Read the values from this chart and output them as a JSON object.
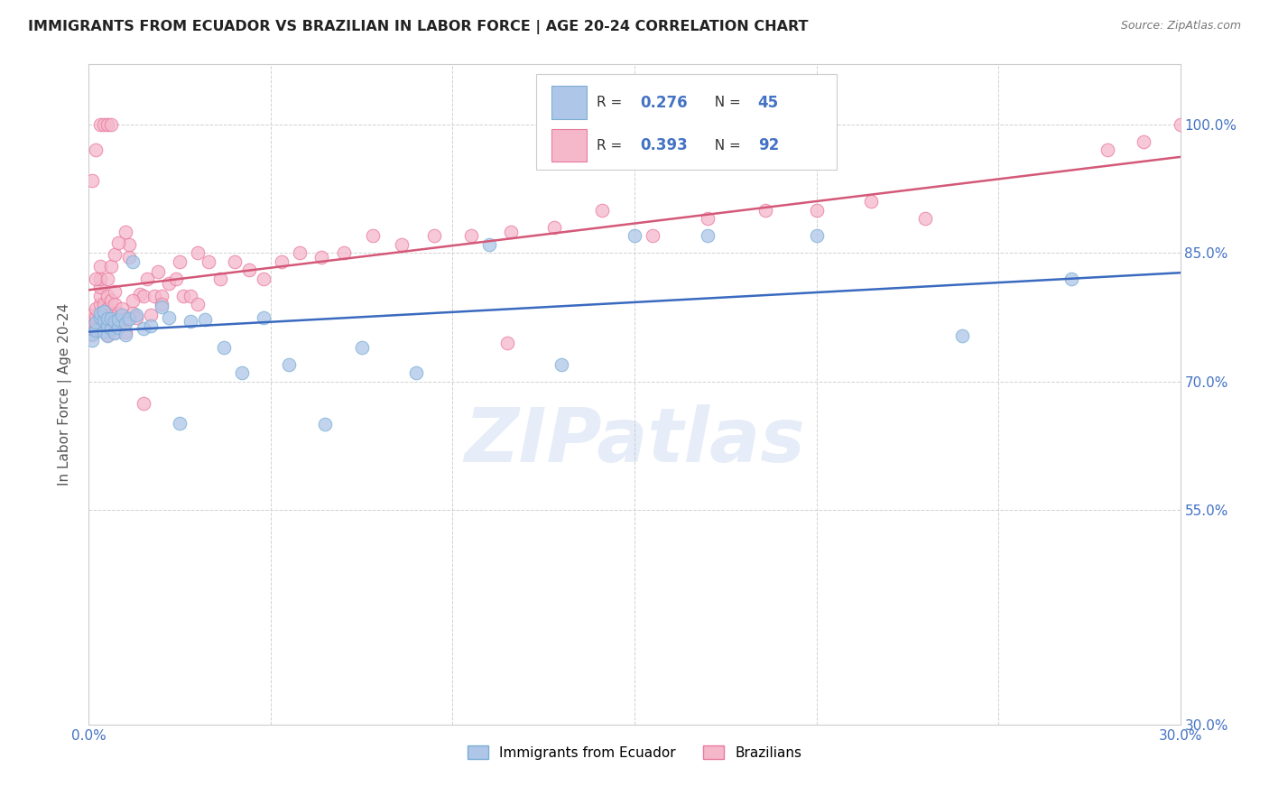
{
  "title": "IMMIGRANTS FROM ECUADOR VS BRAZILIAN IN LABOR FORCE | AGE 20-24 CORRELATION CHART",
  "source": "Source: ZipAtlas.com",
  "ylabel": "In Labor Force | Age 20-24",
  "x_min": 0.0,
  "x_max": 0.3,
  "y_min": 0.3,
  "y_max": 1.07,
  "x_ticks": [
    0.0,
    0.05,
    0.1,
    0.15,
    0.2,
    0.25,
    0.3
  ],
  "x_tick_labels": [
    "0.0%",
    "",
    "",
    "",
    "",
    "",
    "30.0%"
  ],
  "y_ticks": [
    0.3,
    0.55,
    0.7,
    0.85,
    1.0
  ],
  "y_tick_labels": [
    "30.0%",
    "55.0%",
    "70.0%",
    "85.0%",
    "100.0%"
  ],
  "watermark": "ZIPatlas",
  "ecuador_color": "#aec6e8",
  "brazil_color": "#f5b8cb",
  "ecuador_edge_color": "#7aafd4",
  "brazil_edge_color": "#e87a9f",
  "trend_ecuador_color": "#3a6abf",
  "trend_brazil_color": "#d45878",
  "R_ecuador": 0.276,
  "N_ecuador": 45,
  "R_brazil": 0.393,
  "N_brazil": 92,
  "legend_labels": [
    "Immigrants from Ecuador",
    "Brazilians"
  ],
  "ecuador_x": [
    0.001,
    0.001,
    0.002,
    0.002,
    0.003,
    0.003,
    0.004,
    0.004,
    0.004,
    0.005,
    0.005,
    0.005,
    0.006,
    0.006,
    0.007,
    0.007,
    0.008,
    0.008,
    0.009,
    0.01,
    0.01,
    0.011,
    0.012,
    0.013,
    0.015,
    0.017,
    0.02,
    0.022,
    0.025,
    0.028,
    0.032,
    0.037,
    0.042,
    0.048,
    0.055,
    0.065,
    0.075,
    0.09,
    0.11,
    0.13,
    0.15,
    0.17,
    0.2,
    0.24,
    0.27
  ],
  "ecuador_y": [
    0.756,
    0.748,
    0.76,
    0.769,
    0.775,
    0.78,
    0.758,
    0.771,
    0.782,
    0.754,
    0.765,
    0.774,
    0.762,
    0.773,
    0.757,
    0.77,
    0.763,
    0.772,
    0.778,
    0.755,
    0.768,
    0.774,
    0.84,
    0.778,
    0.762,
    0.765,
    0.787,
    0.775,
    0.651,
    0.77,
    0.772,
    0.74,
    0.71,
    0.775,
    0.72,
    0.65,
    0.74,
    0.71,
    0.86,
    0.72,
    0.87,
    0.87,
    0.87,
    0.753,
    0.82
  ],
  "brazil_x": [
    0.001,
    0.001,
    0.001,
    0.001,
    0.002,
    0.002,
    0.002,
    0.002,
    0.003,
    0.003,
    0.003,
    0.003,
    0.004,
    0.004,
    0.004,
    0.005,
    0.005,
    0.005,
    0.005,
    0.006,
    0.006,
    0.006,
    0.007,
    0.007,
    0.007,
    0.007,
    0.008,
    0.008,
    0.009,
    0.009,
    0.01,
    0.01,
    0.011,
    0.011,
    0.012,
    0.013,
    0.014,
    0.015,
    0.016,
    0.017,
    0.018,
    0.019,
    0.02,
    0.022,
    0.024,
    0.026,
    0.028,
    0.03,
    0.033,
    0.036,
    0.04,
    0.044,
    0.048,
    0.053,
    0.058,
    0.064,
    0.07,
    0.078,
    0.086,
    0.095,
    0.105,
    0.116,
    0.128,
    0.141,
    0.155,
    0.17,
    0.186,
    0.2,
    0.215,
    0.23,
    0.002,
    0.003,
    0.005,
    0.006,
    0.007,
    0.008,
    0.01,
    0.012,
    0.015,
    0.02,
    0.025,
    0.03,
    0.001,
    0.002,
    0.003,
    0.004,
    0.005,
    0.006,
    0.115,
    0.28,
    0.29,
    0.3
  ],
  "brazil_y": [
    0.755,
    0.762,
    0.77,
    0.778,
    0.76,
    0.768,
    0.776,
    0.785,
    0.79,
    0.8,
    0.81,
    0.82,
    0.76,
    0.775,
    0.79,
    0.755,
    0.77,
    0.785,
    0.8,
    0.762,
    0.778,
    0.795,
    0.758,
    0.774,
    0.79,
    0.805,
    0.765,
    0.78,
    0.77,
    0.785,
    0.758,
    0.773,
    0.845,
    0.86,
    0.78,
    0.775,
    0.802,
    0.8,
    0.82,
    0.778,
    0.8,
    0.828,
    0.8,
    0.815,
    0.82,
    0.8,
    0.8,
    0.79,
    0.84,
    0.82,
    0.84,
    0.83,
    0.82,
    0.84,
    0.85,
    0.845,
    0.85,
    0.87,
    0.86,
    0.87,
    0.87,
    0.875,
    0.88,
    0.9,
    0.87,
    0.89,
    0.9,
    0.9,
    0.91,
    0.89,
    0.82,
    0.835,
    0.82,
    0.835,
    0.848,
    0.862,
    0.875,
    0.795,
    0.675,
    0.79,
    0.84,
    0.85,
    0.935,
    0.97,
    1.0,
    1.0,
    1.0,
    1.0,
    0.745,
    0.97,
    0.98,
    1.0
  ]
}
